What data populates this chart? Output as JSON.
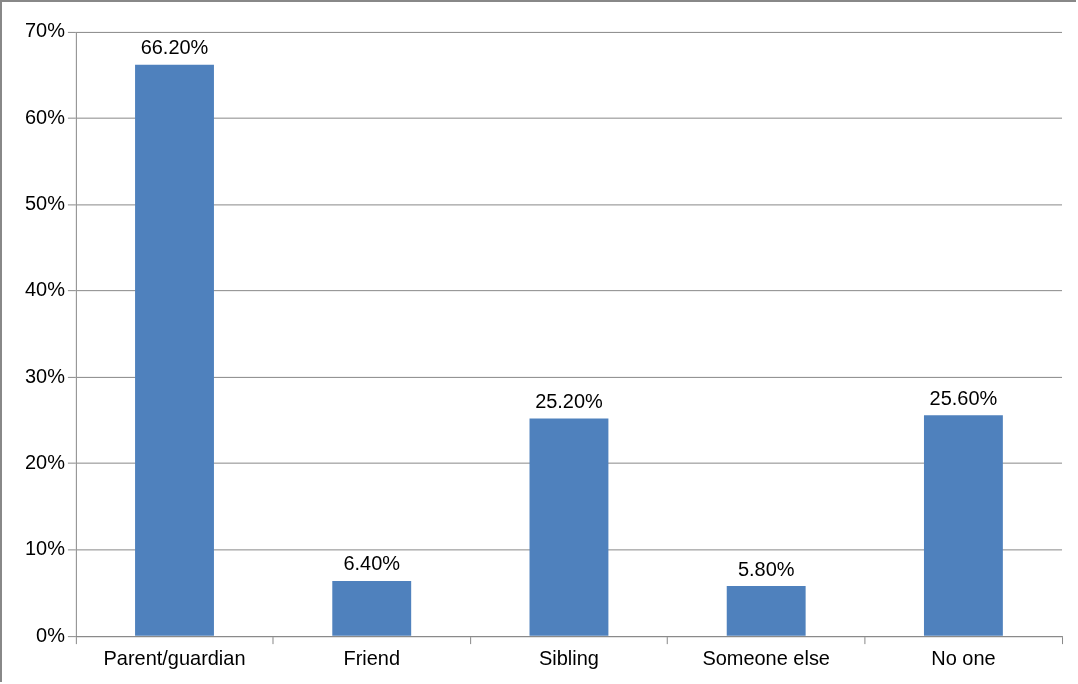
{
  "chart_data": {
    "type": "bar",
    "categories": [
      "Parent/guardian",
      "Friend",
      "Sibling",
      "Someone else",
      "No one"
    ],
    "values": [
      66.2,
      6.4,
      25.2,
      5.8,
      25.6
    ],
    "value_labels": [
      "66.20%",
      "6.40%",
      "25.20%",
      "5.80%",
      "25.60%"
    ],
    "color": "#4f81bd",
    "ylim": [
      0,
      70
    ],
    "yticks": [
      {
        "value": 0,
        "label": "0%"
      },
      {
        "value": 10,
        "label": "10%"
      },
      {
        "value": 20,
        "label": "20%"
      },
      {
        "value": 30,
        "label": "30%"
      },
      {
        "value": 40,
        "label": "40%"
      },
      {
        "value": 50,
        "label": "50%"
      },
      {
        "value": 60,
        "label": "60%"
      },
      {
        "value": 70,
        "label": "70%"
      }
    ],
    "grid": "y",
    "legend": false
  }
}
